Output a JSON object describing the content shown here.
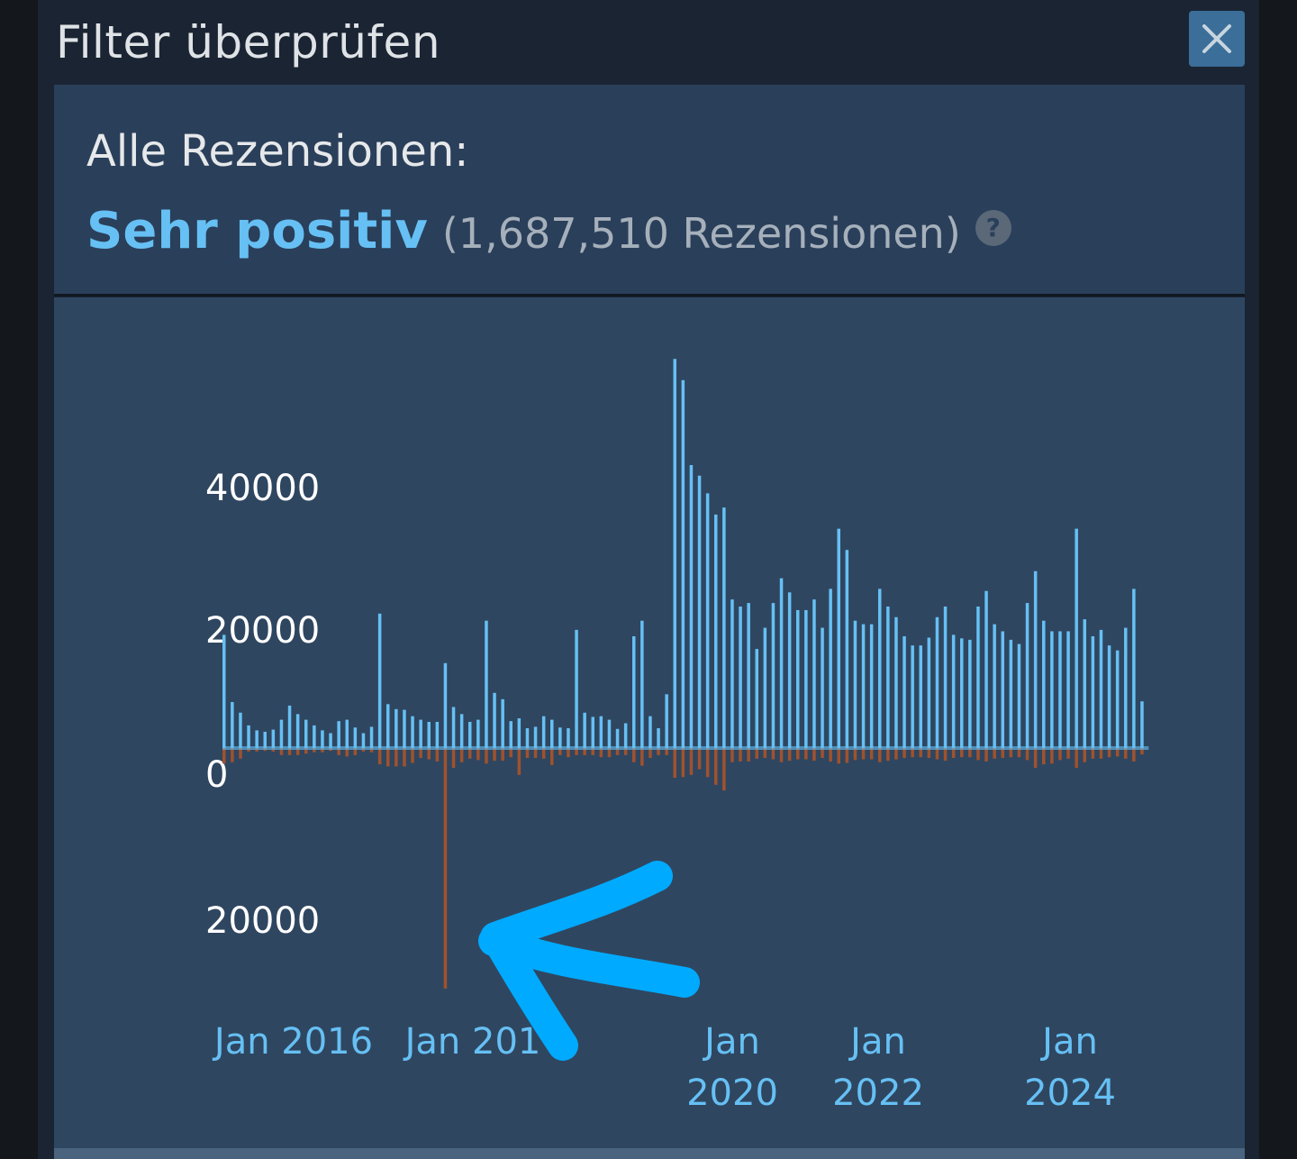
{
  "modal": {
    "title": "Filter überprüfen",
    "close_icon": "close-icon"
  },
  "summary": {
    "label": "Alle Rezensionen:",
    "rating": "Sehr positiv",
    "count": "(1,687,510 Rezensionen)",
    "help_glyph": "?"
  },
  "colors": {
    "positive": "#66c0f4",
    "negative": "#a0522d",
    "annotation": "#00aaff"
  },
  "chart_data": {
    "type": "bar",
    "description_axis": "monthly review histogram, positive above zero, negative below",
    "y_tick_labels": [
      {
        "label": "40000",
        "value": 40000
      },
      {
        "label": "20000",
        "value": 20000
      },
      {
        "label": "0",
        "value": 0
      },
      {
        "label": "20000",
        "value": -20000
      }
    ],
    "x_tick_labels": [
      {
        "lines": [
          "Jan 2016"
        ],
        "index": 8
      },
      {
        "lines": [
          "Jan 201"
        ],
        "index": 30
      },
      {
        "lines": [
          "Jan",
          "2020"
        ],
        "index": 63
      },
      {
        "lines": [
          "Jan",
          "2022"
        ],
        "index": 81
      },
      {
        "lines": [
          "Jan",
          "2024"
        ],
        "index": 105
      }
    ],
    "ylim": [
      -20000,
      55000
    ],
    "series": [
      {
        "kind": "positive",
        "values": [
          16000,
          6500,
          5000,
          3200,
          2500,
          2300,
          2600,
          4000,
          6000,
          4800,
          4000,
          3200,
          2500,
          2100,
          3800,
          4000,
          2900,
          2100,
          3000,
          19000,
          6200,
          5500,
          5400,
          4500,
          4000,
          3700,
          3700,
          12000,
          5800,
          4800,
          3700,
          4000,
          18000,
          7800,
          6900,
          3800,
          4200,
          2800,
          3000,
          4500,
          4000,
          2900,
          2800,
          16700,
          5000,
          4400,
          4500,
          4000,
          2700,
          3500,
          15800,
          18000,
          4500,
          2800,
          7600,
          55000,
          52000,
          40000,
          38500,
          36000,
          33000,
          34000,
          21000,
          20000,
          20500,
          14000,
          17000,
          20500,
          24000,
          22000,
          19500,
          19500,
          21000,
          17000,
          22500,
          31000,
          28000,
          18000,
          17500,
          17500,
          22500,
          20000,
          18500,
          15800,
          14500,
          14500,
          15600,
          18500,
          20000,
          16000,
          15500,
          15300,
          20000,
          22200,
          17500,
          16500,
          15300,
          14700,
          20500,
          25000,
          18000,
          16500,
          16500,
          16500,
          31000,
          18200,
          15800,
          16700,
          14500,
          13800,
          17000,
          22500,
          6600
        ]
      },
      {
        "kind": "negative",
        "values": [
          2200,
          2000,
          1500,
          500,
          500,
          400,
          500,
          1000,
          1000,
          1000,
          800,
          600,
          600,
          400,
          1000,
          1200,
          1000,
          500,
          600,
          2300,
          2600,
          2600,
          2600,
          2100,
          1400,
          1600,
          1900,
          34000,
          2800,
          2000,
          1500,
          1700,
          2200,
          1800,
          1800,
          1300,
          3800,
          1400,
          1400,
          1500,
          2400,
          1000,
          1300,
          1000,
          1000,
          1000,
          1300,
          1300,
          1000,
          1000,
          2000,
          2500,
          1400,
          1000,
          1000,
          4200,
          4100,
          3800,
          3000,
          4100,
          5200,
          6000,
          2000,
          1900,
          1900,
          1500,
          1400,
          1600,
          2000,
          1800,
          1600,
          1600,
          1800,
          1400,
          1900,
          2200,
          2100,
          1700,
          1600,
          1600,
          2000,
          1800,
          1600,
          1400,
          1300,
          1300,
          1400,
          1600,
          1800,
          1400,
          1300,
          1300,
          1700,
          1900,
          1500,
          1400,
          1300,
          1300,
          1700,
          2800,
          2300,
          2200,
          1700,
          1500,
          2800,
          2000,
          1500,
          1500,
          1300,
          1200,
          1500,
          1900,
          900
        ]
      }
    ]
  }
}
